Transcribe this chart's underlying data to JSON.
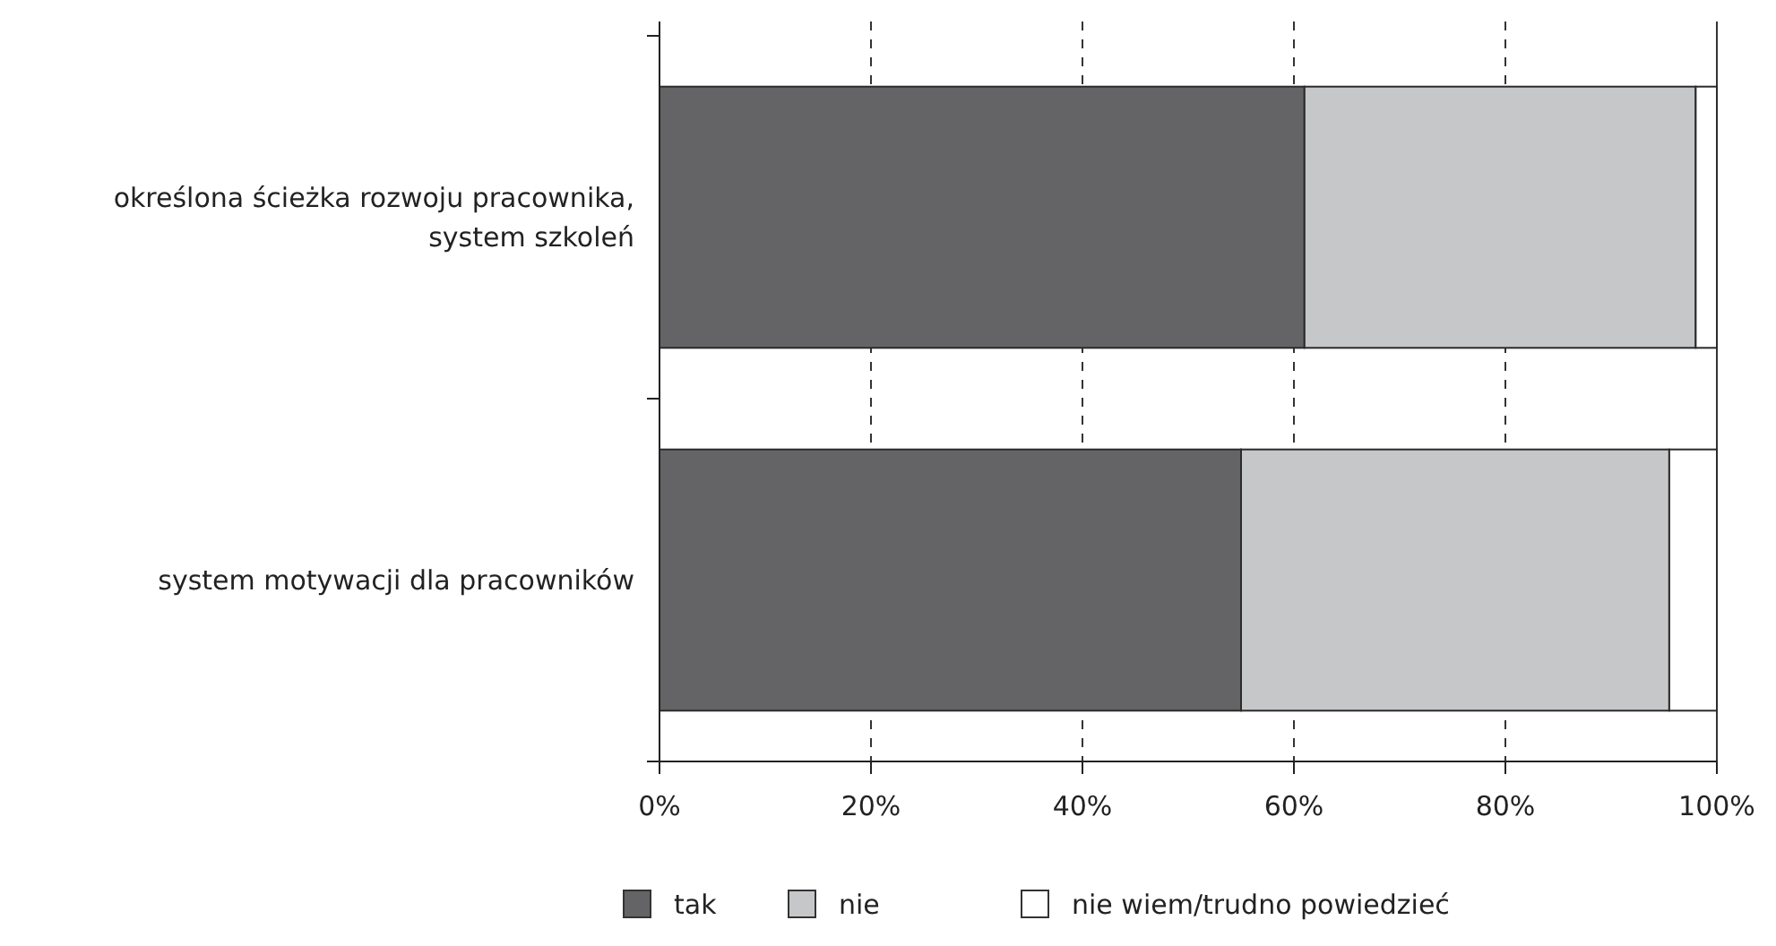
{
  "chart_data": {
    "type": "bar",
    "orientation": "horizontal",
    "stacked": true,
    "categories": [
      "określona ścieżka rozwoju pracownika, system szkoleń",
      "system motywacji dla pracowników"
    ],
    "series": [
      {
        "name": "tak",
        "color": "#646466",
        "values": [
          61,
          55
        ]
      },
      {
        "name": "nie",
        "color": "#c6c7c9",
        "values": [
          37,
          40.5
        ]
      },
      {
        "name": "nie wiem/trudno powiedzieć",
        "color": "#ffffff",
        "values": [
          2,
          4.5
        ]
      }
    ],
    "xlim": [
      0,
      100
    ],
    "xticks": [
      {
        "value": 0,
        "label": "0%"
      },
      {
        "value": 20,
        "label": "20%"
      },
      {
        "value": 40,
        "label": "40%"
      },
      {
        "value": 60,
        "label": "60%"
      },
      {
        "value": 80,
        "label": "80%"
      },
      {
        "value": 100,
        "label": "100%"
      }
    ],
    "grid": "x",
    "line_style": "dashed",
    "legend": "bottom"
  }
}
